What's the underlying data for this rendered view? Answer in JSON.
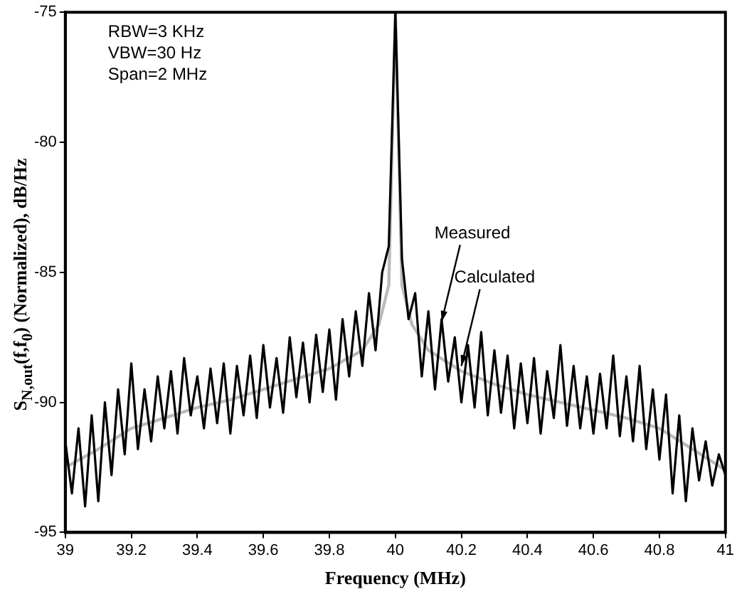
{
  "chart_data": {
    "type": "line",
    "xlabel": "Frequency (MHz)",
    "ylabel": "S$_{N,out}$(f,f$_{0}$) (Normalized), dB/Hz",
    "xlim": [
      39,
      41
    ],
    "xticks": [
      39,
      39.2,
      39.4,
      39.6,
      39.8,
      40,
      40.2,
      40.4,
      40.6,
      40.8,
      41
    ],
    "ylim": [
      -95,
      -75
    ],
    "yticks": [
      -95,
      -90,
      -85,
      -80,
      -75
    ],
    "grid": false,
    "legend": false,
    "marker": "none",
    "line_style": "solid",
    "annotations": [
      "RBW=3 KHz",
      "VBW=30 Hz",
      "Span=2 MHz",
      {
        "text": "Measured",
        "x": 40.14,
        "y": -86.9
      },
      {
        "text": "Calculated",
        "x": 40.2,
        "y": -88.6
      }
    ],
    "series": [
      {
        "color": "#000000",
        "x": [
          39,
          39.02,
          39.04,
          39.06,
          39.08,
          39.1,
          39.12,
          39.14,
          39.16,
          39.18,
          39.2,
          39.22,
          39.24,
          39.26,
          39.28,
          39.3,
          39.32,
          39.34,
          39.36,
          39.38,
          39.4,
          39.42,
          39.44,
          39.46,
          39.48,
          39.5,
          39.52,
          39.54,
          39.56,
          39.58,
          39.6,
          39.62,
          39.64,
          39.66,
          39.68,
          39.7,
          39.72,
          39.74,
          39.76,
          39.78,
          39.8,
          39.82,
          39.84,
          39.86,
          39.88,
          39.9,
          39.92,
          39.94,
          39.96,
          39.98,
          40,
          40.02,
          40.04,
          40.06,
          40.08,
          40.1,
          40.12,
          40.14,
          40.16,
          40.18,
          40.2,
          40.22,
          40.24,
          40.26,
          40.28,
          40.3,
          40.32,
          40.34,
          40.36,
          40.38,
          40.4,
          40.42,
          40.44,
          40.46,
          40.48,
          40.5,
          40.52,
          40.54,
          40.56,
          40.58,
          40.6,
          40.62,
          40.64,
          40.66,
          40.68,
          40.7,
          40.72,
          40.74,
          40.76,
          40.78,
          40.8,
          40.82,
          40.84,
          40.86,
          40.88,
          40.9,
          40.92,
          40.94,
          40.96,
          40.98,
          41
        ],
        "values": [
          -91.5,
          -93.5,
          -91,
          -94,
          -90.5,
          -93.8,
          -90,
          -92.8,
          -89.5,
          -92,
          -88.5,
          -91.8,
          -89.5,
          -91.5,
          -89,
          -91,
          -88.8,
          -91.2,
          -88.3,
          -90.5,
          -89,
          -91,
          -88.7,
          -90.8,
          -88.5,
          -91.2,
          -88.6,
          -90.5,
          -88.2,
          -90.6,
          -87.8,
          -90.2,
          -88.3,
          -90.4,
          -87.5,
          -89.8,
          -87.7,
          -90,
          -87.4,
          -89.6,
          -87.2,
          -89.9,
          -86.8,
          -89,
          -86.5,
          -88.6,
          -85.8,
          -88,
          -85,
          -84,
          -75,
          -84.5,
          -86.8,
          -85.8,
          -89,
          -86.5,
          -89.5,
          -86.8,
          -89.2,
          -87.5,
          -90,
          -87.8,
          -90.2,
          -87.3,
          -90.5,
          -88,
          -90.4,
          -88.2,
          -91,
          -88.5,
          -90.8,
          -88.3,
          -91.2,
          -88.8,
          -90.6,
          -87.8,
          -90.9,
          -88.6,
          -91,
          -89,
          -91.2,
          -88.9,
          -91,
          -88.2,
          -91.3,
          -89,
          -91.5,
          -88.6,
          -91.8,
          -89.5,
          -92.2,
          -89.7,
          -93.5,
          -90.5,
          -93.8,
          -91,
          -93,
          -91.5,
          -93.2,
          -92,
          -92.8
        ]
      },
      {
        "color": "#bbbbbb",
        "x": [
          39,
          39.1,
          39.2,
          39.3,
          39.4,
          39.5,
          39.6,
          39.7,
          39.8,
          39.9,
          39.95,
          39.98,
          40,
          40.02,
          40.05,
          40.1,
          40.2,
          40.3,
          40.4,
          40.5,
          40.6,
          40.7,
          40.8,
          40.9,
          41
        ],
        "values": [
          -92.5,
          -91.8,
          -91,
          -90.6,
          -90.2,
          -89.9,
          -89.5,
          -89.1,
          -88.7,
          -88,
          -87,
          -85.5,
          -75,
          -85.5,
          -87,
          -88,
          -88.8,
          -89.3,
          -89.7,
          -90,
          -90.3,
          -90.6,
          -91,
          -91.8,
          -92.6
        ]
      }
    ]
  }
}
